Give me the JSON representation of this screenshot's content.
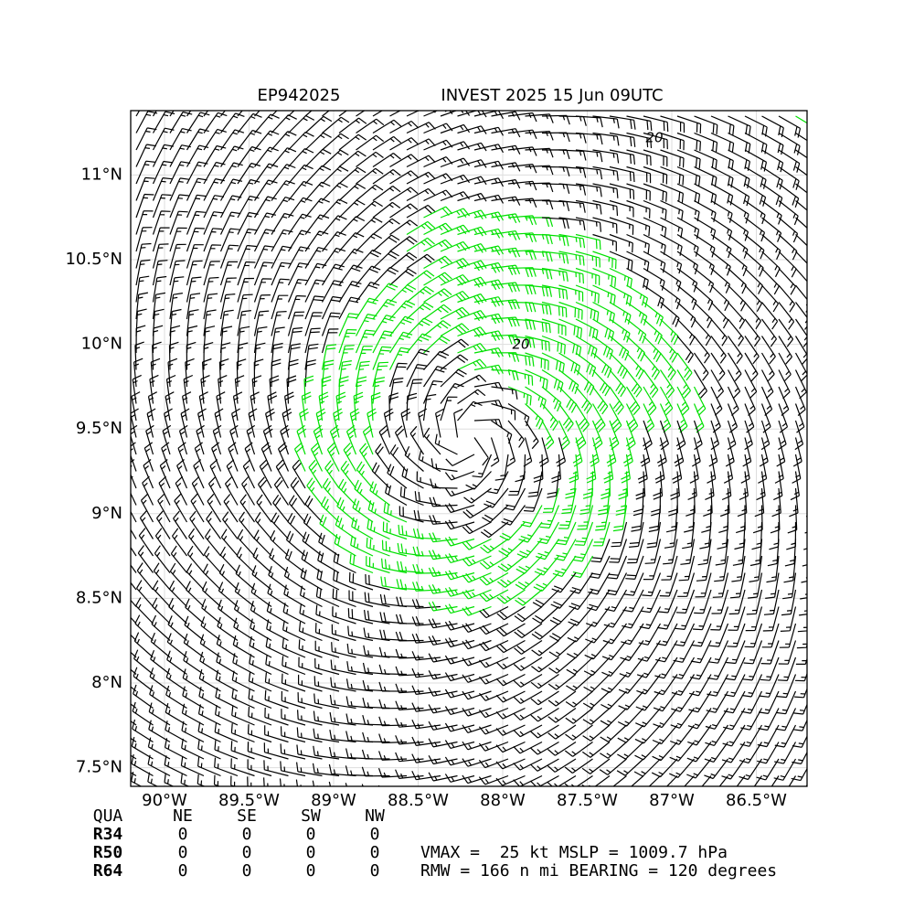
{
  "chart_data": {
    "type": "barbs",
    "title": "EP942025",
    "subtitle": "INVEST 2025 15 Jun 09UTC",
    "xlim": [
      -90.2,
      -86.2
    ],
    "ylim": [
      7.39,
      11.38
    ],
    "xticks": [
      {
        "value": -90,
        "label": "90°W"
      },
      {
        "value": -89.5,
        "label": "89.5°W"
      },
      {
        "value": -89,
        "label": "89°W"
      },
      {
        "value": -88.5,
        "label": "88.5°W"
      },
      {
        "value": -88,
        "label": "88°W"
      },
      {
        "value": -87.5,
        "label": "87.5°W"
      },
      {
        "value": -87,
        "label": "87°W"
      },
      {
        "value": -86.5,
        "label": "86.5°W"
      }
    ],
    "yticks": [
      {
        "value": 7.5,
        "label": "7.5°N"
      },
      {
        "value": 8,
        "label": "8°N"
      },
      {
        "value": 8.5,
        "label": "8.5°N"
      },
      {
        "value": 9,
        "label": "9°N"
      },
      {
        "value": 9.5,
        "label": "9.5°N"
      },
      {
        "value": 10,
        "label": "10°N"
      },
      {
        "value": 10.5,
        "label": "10.5°N"
      },
      {
        "value": 11,
        "label": "11°N"
      }
    ],
    "grid": true,
    "contour_labels": [
      "20",
      "20"
    ],
    "radii": {
      "header": [
        "QUA",
        "NE",
        "SE",
        "SW",
        "NW"
      ],
      "rows": [
        {
          "name": "R34",
          "values": [
            0,
            0,
            0,
            0
          ]
        },
        {
          "name": "R50",
          "values": [
            0,
            0,
            0,
            0
          ]
        },
        {
          "name": "R64",
          "values": [
            0,
            0,
            0,
            0
          ]
        }
      ]
    },
    "info": [
      "VMAX =  25 kt MSLP = 1009.7 hPa",
      "RMW = 166 n mi BEARING = 120 degrees"
    ]
  }
}
